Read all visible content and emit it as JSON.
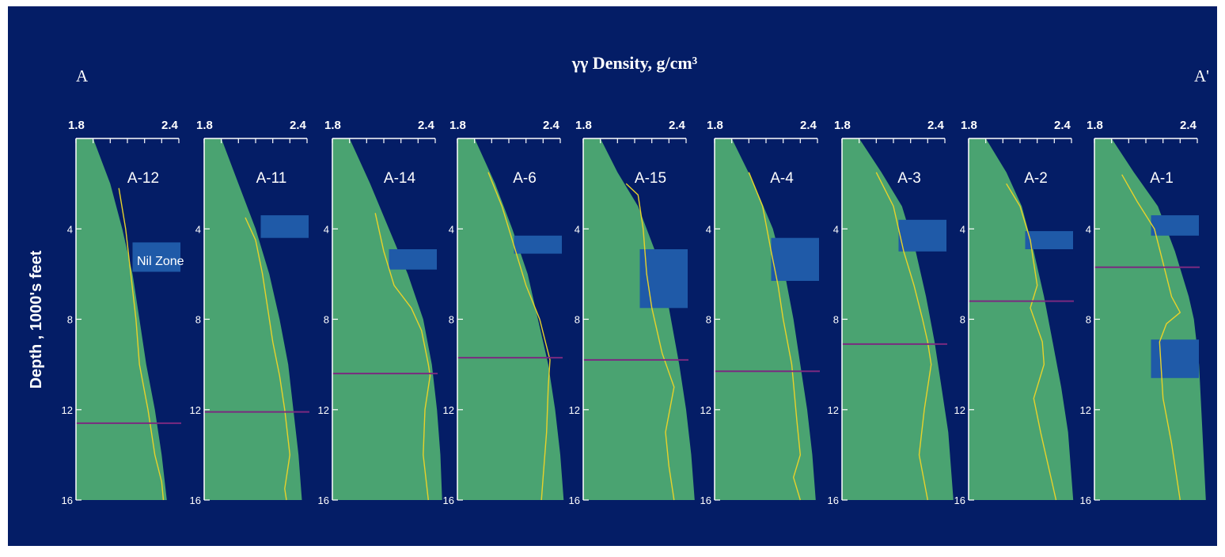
{
  "colors": {
    "background": "#041d66",
    "frame": "#ffffff",
    "normal_trend_fill": "#4aa371",
    "measured_curve": "#e8d22a",
    "top_of_overpressure_line": "#7a2a80",
    "zone_box": "#1f5aa8",
    "text": "#ffffff"
  },
  "header": {
    "left_marker": "A",
    "right_marker": "A'",
    "title": "γγ Density, g/cm³"
  },
  "chart_data": {
    "type": "line",
    "title": "γγ Density, g/cm³",
    "ylabel": "Depth , 1000's feet",
    "xlim": [
      1.8,
      2.4
    ],
    "ylim": [
      0,
      16
    ],
    "y_inverted": true,
    "x_tick_labels": [
      "1.8",
      "2.4"
    ],
    "y_tick_labels": [
      "4",
      "8",
      "12",
      "16"
    ],
    "annotation": "Nil Zone",
    "wells": [
      {
        "name": "A-12",
        "trend": [
          [
            1.8,
            0
          ],
          [
            1.9,
            0
          ],
          [
            2.0,
            2
          ],
          [
            2.07,
            4
          ],
          [
            2.13,
            6
          ],
          [
            2.17,
            8
          ],
          [
            2.21,
            10
          ],
          [
            2.26,
            12
          ],
          [
            2.3,
            14
          ],
          [
            2.33,
            16
          ]
        ],
        "curve": [
          [
            2.05,
            2.2
          ],
          [
            2.09,
            4
          ],
          [
            2.12,
            6
          ],
          [
            2.15,
            8
          ],
          [
            2.17,
            10
          ],
          [
            2.22,
            12
          ],
          [
            2.26,
            14
          ],
          [
            2.3,
            15.2
          ],
          [
            2.31,
            16
          ]
        ],
        "top_depth": 12.6,
        "zones": [
          [
            4.6,
            5.9
          ]
        ]
      },
      {
        "name": "A-11",
        "trend": [
          [
            1.8,
            0
          ],
          [
            1.9,
            0
          ],
          [
            2.0,
            2
          ],
          [
            2.1,
            4
          ],
          [
            2.18,
            6
          ],
          [
            2.24,
            8
          ],
          [
            2.29,
            10
          ],
          [
            2.32,
            12
          ],
          [
            2.35,
            14
          ],
          [
            2.37,
            16
          ]
        ],
        "curve": [
          [
            2.04,
            3.5
          ],
          [
            2.1,
            4.5
          ],
          [
            2.14,
            6
          ],
          [
            2.17,
            7.5
          ],
          [
            2.2,
            9
          ],
          [
            2.24,
            10.5
          ],
          [
            2.27,
            12
          ],
          [
            2.3,
            14
          ],
          [
            2.27,
            15.5
          ],
          [
            2.28,
            16
          ]
        ],
        "top_depth": 12.1,
        "zones": [
          [
            3.4,
            4.4
          ]
        ]
      },
      {
        "name": "A-14",
        "trend": [
          [
            1.8,
            0
          ],
          [
            1.9,
            0
          ],
          [
            2.02,
            2
          ],
          [
            2.13,
            4
          ],
          [
            2.24,
            6
          ],
          [
            2.33,
            8
          ],
          [
            2.38,
            10
          ],
          [
            2.41,
            12
          ],
          [
            2.43,
            14
          ],
          [
            2.44,
            16
          ]
        ],
        "curve": [
          [
            2.05,
            3.3
          ],
          [
            2.1,
            5
          ],
          [
            2.16,
            6.5
          ],
          [
            2.26,
            7.5
          ],
          [
            2.32,
            8.5
          ],
          [
            2.36,
            10
          ],
          [
            2.37,
            10.5
          ],
          [
            2.34,
            12
          ],
          [
            2.33,
            14
          ],
          [
            2.36,
            16
          ]
        ],
        "top_depth": 10.4,
        "zones": [
          [
            4.9,
            5.8
          ]
        ]
      },
      {
        "name": "A-6",
        "trend": [
          [
            1.8,
            0
          ],
          [
            1.9,
            0
          ],
          [
            2.02,
            2
          ],
          [
            2.12,
            4
          ],
          [
            2.21,
            6
          ],
          [
            2.27,
            8
          ],
          [
            2.33,
            10
          ],
          [
            2.37,
            12
          ],
          [
            2.4,
            14
          ],
          [
            2.42,
            16
          ]
        ],
        "curve": [
          [
            1.98,
            1.5
          ],
          [
            2.06,
            3
          ],
          [
            2.14,
            5
          ],
          [
            2.2,
            6.5
          ],
          [
            2.28,
            8
          ],
          [
            2.34,
            9.8
          ],
          [
            2.33,
            11
          ],
          [
            2.32,
            13
          ],
          [
            2.3,
            15
          ],
          [
            2.29,
            16
          ]
        ],
        "top_depth": 9.7,
        "zones": [
          [
            4.3,
            5.1
          ]
        ]
      },
      {
        "name": "A-15",
        "trend": [
          [
            1.8,
            0
          ],
          [
            1.9,
            0
          ],
          [
            2.0,
            1.5
          ],
          [
            2.12,
            3
          ],
          [
            2.22,
            5
          ],
          [
            2.3,
            7.5
          ],
          [
            2.36,
            10
          ],
          [
            2.4,
            12
          ],
          [
            2.43,
            14
          ],
          [
            2.45,
            16
          ]
        ],
        "curve": [
          [
            2.05,
            2
          ],
          [
            2.12,
            2.5
          ],
          [
            2.15,
            4
          ],
          [
            2.17,
            6
          ],
          [
            2.2,
            7.5
          ],
          [
            2.26,
            9.5
          ],
          [
            2.33,
            11
          ],
          [
            2.28,
            13
          ],
          [
            2.3,
            14.5
          ],
          [
            2.33,
            16
          ]
        ],
        "top_depth": 9.8,
        "zones": [
          [
            4.9,
            7.5
          ]
        ]
      },
      {
        "name": "A-4",
        "trend": [
          [
            1.8,
            0
          ],
          [
            1.9,
            0
          ],
          [
            2.03,
            2
          ],
          [
            2.14,
            4
          ],
          [
            2.21,
            6
          ],
          [
            2.26,
            8
          ],
          [
            2.3,
            10
          ],
          [
            2.34,
            12
          ],
          [
            2.37,
            14
          ],
          [
            2.39,
            16
          ]
        ],
        "curve": [
          [
            2.0,
            1.5
          ],
          [
            2.08,
            3
          ],
          [
            2.13,
            5
          ],
          [
            2.17,
            6.5
          ],
          [
            2.2,
            8
          ],
          [
            2.25,
            10
          ],
          [
            2.28,
            12.5
          ],
          [
            2.3,
            14
          ],
          [
            2.26,
            15
          ],
          [
            2.3,
            16
          ]
        ],
        "top_depth": 10.3,
        "zones": [
          [
            4.4,
            6.3
          ]
        ]
      },
      {
        "name": "A-3",
        "trend": [
          [
            1.8,
            0
          ],
          [
            1.9,
            0
          ],
          [
            2.03,
            1.5
          ],
          [
            2.15,
            3
          ],
          [
            2.23,
            5
          ],
          [
            2.29,
            7
          ],
          [
            2.34,
            9
          ],
          [
            2.38,
            11
          ],
          [
            2.42,
            13
          ],
          [
            2.45,
            16
          ]
        ],
        "curve": [
          [
            2.0,
            1.5
          ],
          [
            2.1,
            3
          ],
          [
            2.16,
            5
          ],
          [
            2.22,
            6.5
          ],
          [
            2.27,
            8
          ],
          [
            2.3,
            9
          ],
          [
            2.32,
            10
          ],
          [
            2.28,
            12
          ],
          [
            2.25,
            14
          ],
          [
            2.3,
            16
          ]
        ],
        "top_depth": 9.1,
        "zones": [
          [
            3.6,
            5.0
          ]
        ]
      },
      {
        "name": "A-2",
        "trend": [
          [
            1.8,
            0
          ],
          [
            1.9,
            0
          ],
          [
            2.02,
            1.5
          ],
          [
            2.11,
            3
          ],
          [
            2.18,
            5
          ],
          [
            2.24,
            7
          ],
          [
            2.29,
            9
          ],
          [
            2.34,
            11
          ],
          [
            2.38,
            13
          ],
          [
            2.41,
            16
          ]
        ],
        "curve": [
          [
            2.02,
            2
          ],
          [
            2.1,
            3
          ],
          [
            2.16,
            4.5
          ],
          [
            2.18,
            5.5
          ],
          [
            2.2,
            6.5
          ],
          [
            2.16,
            7.5
          ],
          [
            2.23,
            9
          ],
          [
            2.24,
            10
          ],
          [
            2.18,
            11.5
          ],
          [
            2.22,
            13
          ],
          [
            2.28,
            15
          ],
          [
            2.31,
            16
          ]
        ],
        "top_depth": 7.2,
        "zones": [
          [
            4.1,
            4.9
          ]
        ]
      },
      {
        "name": "A-1",
        "trend": [
          [
            1.8,
            0
          ],
          [
            1.9,
            0
          ],
          [
            2.03,
            1.5
          ],
          [
            2.17,
            3
          ],
          [
            2.27,
            5
          ],
          [
            2.35,
            7
          ],
          [
            2.38,
            8
          ],
          [
            2.41,
            10
          ],
          [
            2.43,
            13
          ],
          [
            2.45,
            16
          ]
        ],
        "curve": [
          [
            1.96,
            1.6
          ],
          [
            2.05,
            2.8
          ],
          [
            2.15,
            4
          ],
          [
            2.2,
            5.5
          ],
          [
            2.25,
            7
          ],
          [
            2.3,
            7.7
          ],
          [
            2.22,
            8.2
          ],
          [
            2.18,
            9
          ],
          [
            2.2,
            11.5
          ],
          [
            2.25,
            13.5
          ],
          [
            2.3,
            16
          ]
        ],
        "top_depth": 5.7,
        "zones": [
          [
            3.4,
            4.3
          ],
          [
            8.9,
            10.6
          ]
        ]
      }
    ]
  }
}
